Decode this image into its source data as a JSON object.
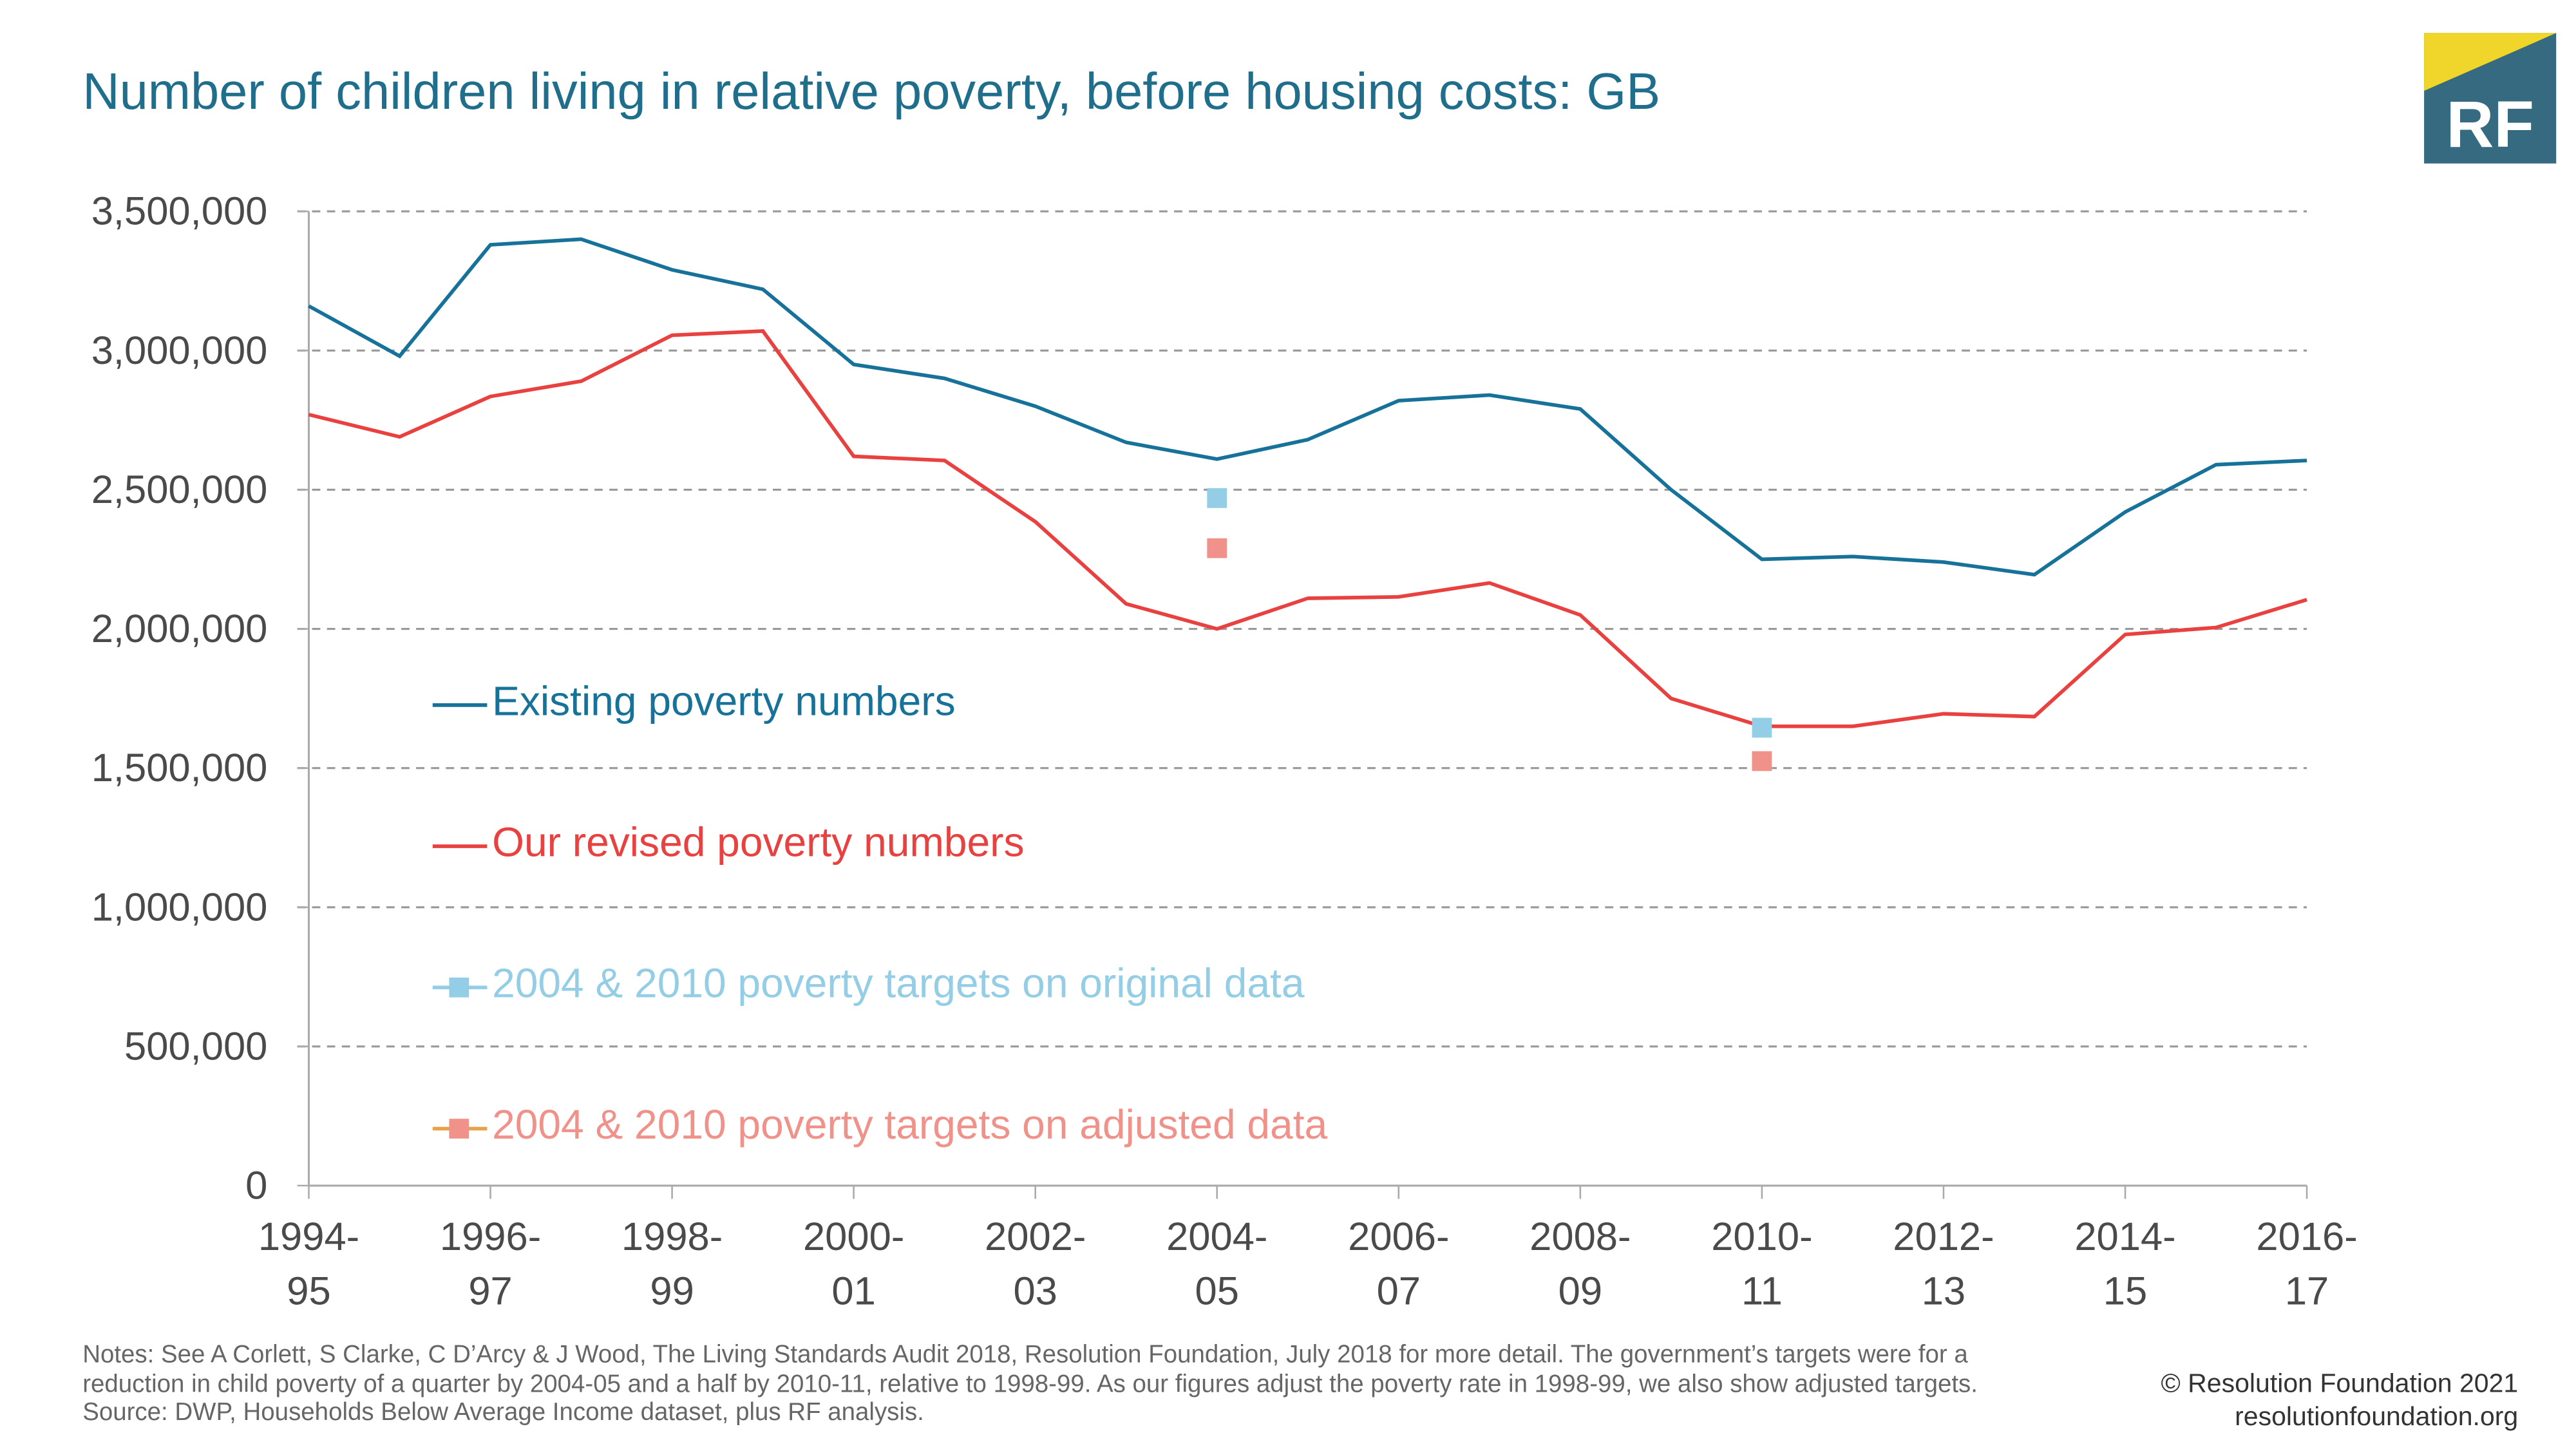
{
  "title": "Number of children living in relative poverty, before housing costs: GB",
  "logo": {
    "text": "RF",
    "colors": {
      "yellow": "#f0d62a",
      "teal": "#356a80"
    }
  },
  "notes": [
    "Notes: See A Corlett, S Clarke, C D’Arcy & J Wood, The Living Standards Audit 2018, Resolution Foundation, July 2018 for more detail. The government’s targets were for a",
    "reduction in child poverty of a quarter by 2004-05 and a half by 2010-11, relative to 1998-99. As our figures adjust the poverty rate in 1998-99, we also show adjusted targets.",
    "Source: DWP, Households Below Average Income dataset, plus RF analysis."
  ],
  "copyright": "© Resolution Foundation 2021",
  "website": "resolutionfoundation.org",
  "chart_data": {
    "type": "line",
    "title": "Number of children living in relative poverty, before housing costs: GB",
    "ylim": [
      0,
      3500000
    ],
    "grid": true,
    "legend_placement": "inside-left",
    "yticks": [
      "0",
      "500,000",
      "1,000,000",
      "1,500,000",
      "2,000,000",
      "2,500,000",
      "3,000,000",
      "3,500,000"
    ],
    "ytick_values": [
      0,
      500000,
      1000000,
      1500000,
      2000000,
      2500000,
      3000000,
      3500000
    ],
    "xtick_labels": [
      [
        "1994-",
        "95"
      ],
      [
        "1996-",
        "97"
      ],
      [
        "1998-",
        "99"
      ],
      [
        "2000-",
        "01"
      ],
      [
        "2002-",
        "03"
      ],
      [
        "2004-",
        "05"
      ],
      [
        "2006-",
        "07"
      ],
      [
        "2008-",
        "09"
      ],
      [
        "2010-",
        "11"
      ],
      [
        "2012-",
        "13"
      ],
      [
        "2014-",
        "15"
      ],
      [
        "2016-",
        "17"
      ]
    ],
    "x": [
      "1994-95",
      "1995-96",
      "1996-97",
      "1997-98",
      "1998-99",
      "1999-00",
      "2000-01",
      "2001-02",
      "2002-03",
      "2003-04",
      "2004-05",
      "2005-06",
      "2006-07",
      "2007-08",
      "2008-09",
      "2009-10",
      "2010-11",
      "2011-12",
      "2012-13",
      "2013-14",
      "2014-15",
      "2015-16",
      "2016-17"
    ],
    "series": [
      {
        "name": "Existing poverty numbers",
        "kind": "line",
        "color": "#17729a",
        "values": [
          3160000,
          2980000,
          3380000,
          3400000,
          3290000,
          3220000,
          2950000,
          2900000,
          2800000,
          2670000,
          2610000,
          2680000,
          2820000,
          2840000,
          2790000,
          2500000,
          2250000,
          2260000,
          2240000,
          2195000,
          2420000,
          2590000,
          2605000
        ]
      },
      {
        "name": "Our revised poverty numbers",
        "kind": "line",
        "color": "#e8413f",
        "values": [
          2770000,
          2690000,
          2835000,
          2890000,
          3055000,
          3070000,
          2620000,
          2605000,
          2385000,
          2090000,
          2000000,
          2110000,
          2115000,
          2165000,
          2050000,
          1750000,
          1650000,
          1650000,
          1695000,
          1685000,
          1980000,
          2005000,
          2105000
        ]
      },
      {
        "name": "2004 & 2010 poverty targets on original data",
        "kind": "marker",
        "color": "#93cde6",
        "points": [
          {
            "x": "2004-05",
            "y": 2470000
          },
          {
            "x": "2010-11",
            "y": 1645000
          }
        ]
      },
      {
        "name": "2004 & 2010 poverty targets on adjusted data",
        "kind": "marker",
        "color": "#f0928a",
        "legend_line_color": "#e8a24a",
        "points": [
          {
            "x": "2004-05",
            "y": 2290000
          },
          {
            "x": "2010-11",
            "y": 1525000
          }
        ]
      }
    ]
  }
}
